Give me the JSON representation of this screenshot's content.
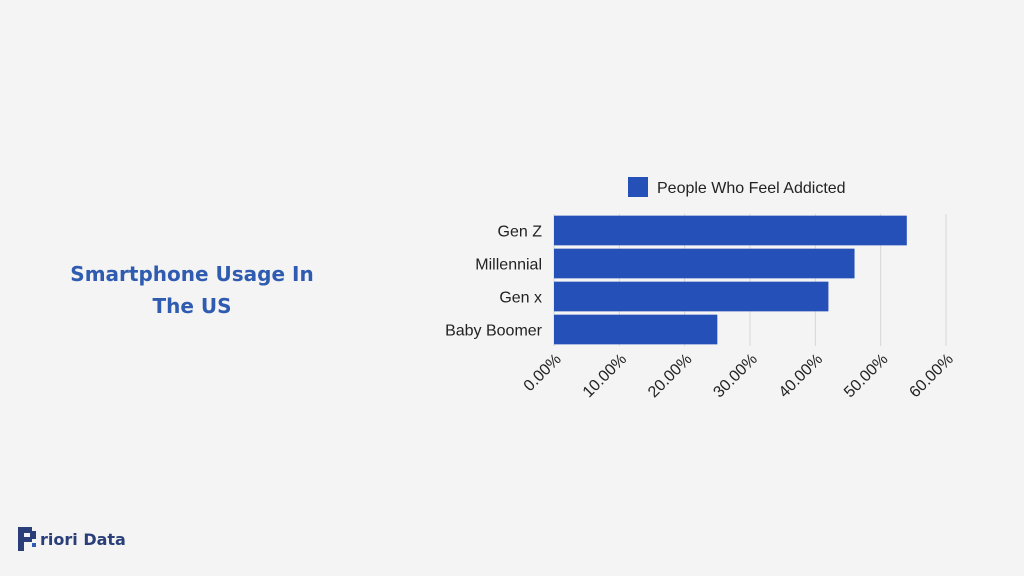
{
  "page": {
    "title": "Smartphone Usage In The US",
    "brand": "riori Data"
  },
  "colors": {
    "bar": "#2550b8",
    "title": "#2f5cb0",
    "brand": "#2a3f7a"
  },
  "chart_data": {
    "type": "bar",
    "orientation": "horizontal",
    "categories": [
      "Gen Z",
      "Millennial",
      "Gen x",
      "Baby Boomer"
    ],
    "series": [
      {
        "name": "People Who Feel Addicted",
        "values": [
          54,
          46,
          42,
          25
        ]
      }
    ],
    "xlim": [
      0,
      60
    ],
    "ticks": [
      0,
      10,
      20,
      30,
      40,
      50,
      60
    ],
    "tick_labels": [
      "0.00%",
      "10.00%",
      "20.00%",
      "30.00%",
      "40.00%",
      "50.00%",
      "60.00%"
    ],
    "legend_position": "top",
    "grid": true
  }
}
